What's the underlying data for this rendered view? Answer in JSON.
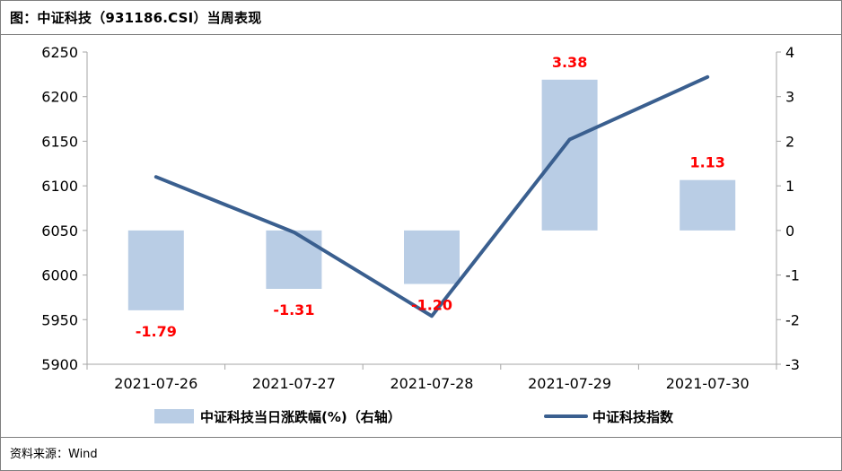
{
  "title": "图：中证科技（931186.CSI）当周表现",
  "source": "资料来源：Wind",
  "colors": {
    "bar": "#b9cde5",
    "line": "#3a5f8f",
    "data_label": "#ff0000",
    "axis": "#a6a6a6",
    "border": "#7f7f7f"
  },
  "chart_data": {
    "type": "bar+line",
    "categories": [
      "2021-07-26",
      "2021-07-27",
      "2021-07-28",
      "2021-07-29",
      "2021-07-30"
    ],
    "series": [
      {
        "name": "中证科技当日涨跌幅(%)（右轴）",
        "type": "bar",
        "axis": "right",
        "values": [
          -1.79,
          -1.31,
          -1.2,
          3.38,
          1.13
        ],
        "labels": [
          "-1.79",
          "-1.31",
          "-1.20",
          "3.38",
          "1.13"
        ]
      },
      {
        "name": "中证科技指数",
        "type": "line",
        "axis": "left",
        "values": [
          6110,
          6048,
          5954,
          6152,
          6222
        ]
      }
    ],
    "left_axis": {
      "min": 5900,
      "max": 6250,
      "step": 50,
      "ticks": [
        "5900",
        "5950",
        "6000",
        "6050",
        "6100",
        "6150",
        "6200",
        "6250"
      ]
    },
    "right_axis": {
      "min": -3,
      "max": 4,
      "step": 1,
      "ticks": [
        "-3",
        "-2",
        "-1",
        "0",
        "1",
        "2",
        "3",
        "4"
      ]
    },
    "grid": false,
    "legend": "bottom"
  }
}
